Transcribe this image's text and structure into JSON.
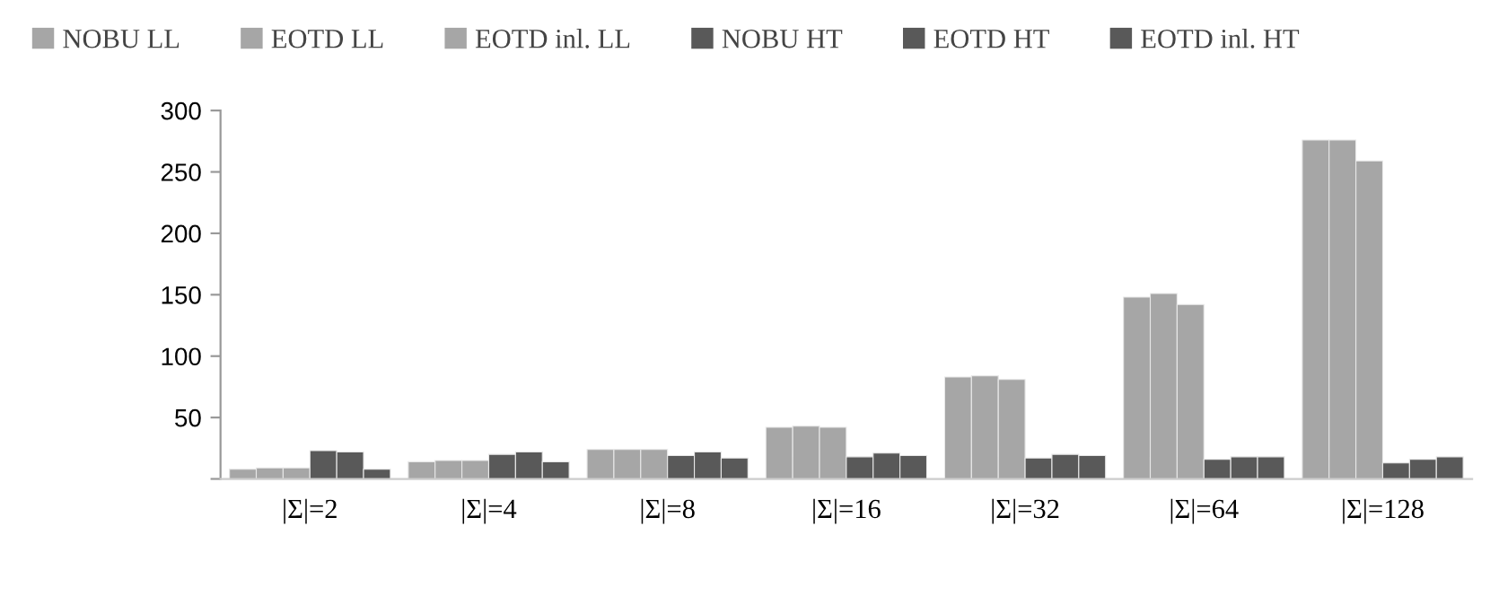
{
  "chart_data": {
    "type": "bar",
    "categories": [
      "|Σ|=2",
      "|Σ|=4",
      "|Σ|=8",
      "|Σ|=16",
      "|Σ|=32",
      "|Σ|=64",
      "|Σ|=128"
    ],
    "series": [
      {
        "name": "NOBU LL",
        "color": "#a6a6a6",
        "values": [
          8,
          14,
          24,
          42,
          83,
          148,
          276
        ]
      },
      {
        "name": "EOTD LL",
        "color": "#a6a6a6",
        "values": [
          9,
          15,
          24,
          43,
          84,
          151,
          276
        ]
      },
      {
        "name": "EOTD inl. LL",
        "color": "#a6a6a6",
        "values": [
          9,
          15,
          24,
          42,
          81,
          142,
          259
        ]
      },
      {
        "name": "NOBU HT",
        "color": "#595959",
        "values": [
          23,
          20,
          19,
          18,
          17,
          16,
          13
        ]
      },
      {
        "name": "EOTD HT",
        "color": "#595959",
        "values": [
          22,
          22,
          22,
          21,
          20,
          18,
          16
        ]
      },
      {
        "name": "EOTD inl. HT",
        "color": "#595959",
        "values": [
          8,
          14,
          17,
          19,
          19,
          18,
          18
        ]
      }
    ],
    "ylim": [
      0,
      300
    ],
    "yticks": [
      {
        "value": 0,
        "label": null
      },
      50,
      100,
      150,
      200,
      250,
      300
    ],
    "grid": false,
    "legend": "top left"
  }
}
